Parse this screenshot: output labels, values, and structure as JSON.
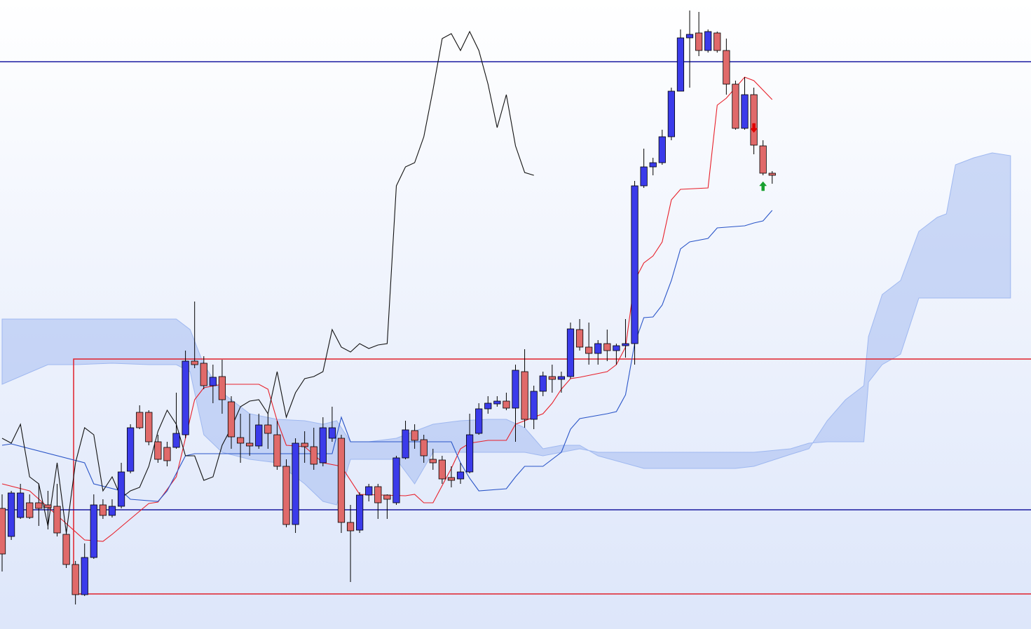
{
  "chart_data": {
    "type": "candlestick",
    "xlim": [
      -0.23,
      112.23
    ],
    "ylim": [
      3,
      900
    ],
    "up_color": "#3b3bea",
    "down_color": "#e06a6a",
    "candles": {
      "open": [
        175,
        135,
        162,
        183,
        183,
        180,
        178,
        138,
        95,
        52,
        105,
        180,
        165,
        178,
        228,
        312,
        312,
        270,
        262,
        262,
        280,
        385,
        382,
        350,
        363,
        327,
        276,
        268,
        264,
        294,
        280,
        235,
        152,
        268,
        263,
        240,
        275,
        275,
        155,
        144,
        194,
        206,
        194,
        183,
        247,
        286,
        273,
        245,
        244,
        219,
        217,
        227,
        282,
        317,
        324,
        328,
        318,
        370,
        302,
        342,
        363,
        359,
        363,
        430,
        405,
        396,
        410,
        400,
        407,
        410,
        635,
        662,
        668,
        705,
        770,
        846,
        853,
        828,
        853,
        828,
        780,
        717,
        765,
        692,
        653
      ],
      "high": [
        195,
        200,
        210,
        195,
        210,
        200,
        210,
        145,
        100,
        125,
        195,
        188,
        188,
        240,
        295,
        322,
        315,
        280,
        270,
        340,
        400,
        470,
        392,
        380,
        387,
        335,
        310,
        310,
        310,
        310,
        300,
        245,
        275,
        285,
        290,
        305,
        320,
        280,
        180,
        198,
        210,
        210,
        195,
        250,
        300,
        295,
        280,
        260,
        250,
        235,
        240,
        310,
        325,
        335,
        335,
        340,
        380,
        402,
        350,
        370,
        380,
        370,
        440,
        445,
        440,
        415,
        430,
        410,
        445,
        642,
        688,
        675,
        715,
        775,
        858,
        885,
        883,
        858,
        855,
        845,
        785,
        790,
        775,
        700,
        656
      ],
      "low": [
        85,
        130,
        160,
        160,
        150,
        145,
        135,
        90,
        38,
        50,
        103,
        160,
        162,
        175,
        225,
        288,
        265,
        240,
        235,
        260,
        275,
        375,
        345,
        325,
        310,
        260,
        240,
        250,
        260,
        260,
        230,
        148,
        140,
        240,
        230,
        235,
        270,
        140,
        70,
        140,
        185,
        160,
        160,
        180,
        245,
        260,
        240,
        230,
        210,
        205,
        210,
        225,
        280,
        310,
        320,
        315,
        270,
        290,
        288,
        335,
        340,
        340,
        360,
        400,
        380,
        380,
        385,
        380,
        390,
        380,
        632,
        650,
        665,
        700,
        770,
        775,
        820,
        825,
        825,
        765,
        715,
        715,
        680,
        650,
        638
      ],
      "close": [
        110,
        197,
        197,
        162,
        175,
        176,
        140,
        95,
        52,
        105,
        180,
        165,
        178,
        227,
        290,
        290,
        270,
        245,
        243,
        282,
        385,
        380,
        350,
        362,
        330,
        277,
        268,
        264,
        294,
        282,
        235,
        152,
        268,
        263,
        238,
        290,
        290,
        155,
        143,
        194,
        206,
        183,
        188,
        247,
        287,
        272,
        250,
        240,
        217,
        215,
        227,
        280,
        317,
        325,
        328,
        318,
        372,
        302,
        342,
        364,
        359,
        363,
        431,
        405,
        396,
        410,
        400,
        407,
        410,
        635,
        662,
        668,
        705,
        770,
        846,
        851,
        828,
        855,
        828,
        780,
        717,
        765,
        693,
        653,
        650
      ]
    },
    "lines": [
      {
        "color": "#e8202a",
        "x": [
          0,
          3,
          6,
          9,
          11,
          12,
          14,
          16,
          17,
          19,
          20,
          21,
          22,
          24,
          28,
          29,
          30,
          31,
          33,
          35,
          37,
          39,
          44,
          45,
          46,
          47,
          49,
          50,
          51,
          53,
          55,
          56,
          57,
          59,
          60,
          61,
          62,
          63,
          66,
          67,
          68,
          69,
          70,
          71,
          72,
          73,
          74,
          77,
          78,
          79,
          81,
          82,
          84
        ],
        "values": [
          210,
          200,
          165,
          130,
          128,
          138,
          160,
          182,
          184,
          220,
          275,
          330,
          347,
          352,
          352,
          345,
          300,
          265,
          263,
          240,
          235,
          195,
          193,
          195,
          183,
          183,
          232,
          260,
          268,
          272,
          272,
          295,
          300,
          310,
          325,
          345,
          360,
          362,
          370,
          380,
          405,
          500,
          525,
          535,
          555,
          615,
          630,
          632,
          750,
          760,
          790,
          785,
          758
        ]
      },
      {
        "color": "#2a55c8",
        "x": [
          0,
          1,
          9,
          10,
          13,
          14,
          17,
          18,
          20,
          21,
          36,
          37,
          38,
          49,
          50,
          51,
          52,
          55,
          56,
          57,
          59,
          61,
          62,
          63,
          66,
          67,
          68,
          69,
          70,
          71,
          72,
          73,
          74,
          75,
          77,
          78,
          81,
          82,
          83,
          84
        ],
        "values": [
          265,
          267,
          240,
          210,
          200,
          188,
          185,
          200,
          250,
          253,
          253,
          305,
          270,
          270,
          240,
          218,
          200,
          203,
          220,
          235,
          235,
          255,
          288,
          303,
          310,
          313,
          337,
          410,
          447,
          448,
          465,
          500,
          545,
          555,
          560,
          575,
          578,
          582,
          585,
          600
        ]
      },
      {
        "color": "#111111",
        "x": [
          0,
          1,
          2,
          3,
          4,
          5,
          6,
          7,
          8,
          9,
          10,
          11,
          12,
          13,
          14,
          15,
          16,
          17,
          18,
          19,
          20,
          21,
          22,
          23,
          24,
          25,
          26,
          27,
          28,
          29,
          30,
          31,
          32,
          33,
          34,
          35,
          36,
          37,
          38,
          39,
          40,
          41,
          42,
          43,
          44,
          45,
          46,
          47,
          48,
          49,
          50,
          51,
          52,
          53,
          54,
          55,
          56,
          57,
          58
        ],
        "values": [
          275,
          268,
          295,
          220,
          210,
          150,
          240,
          140,
          240,
          290,
          280,
          200,
          220,
          190,
          200,
          205,
          235,
          285,
          315,
          295,
          250,
          250,
          215,
          220,
          265,
          290,
          320,
          328,
          330,
          310,
          370,
          305,
          340,
          360,
          363,
          370,
          430,
          405,
          398,
          410,
          403,
          408,
          410,
          635,
          662,
          668,
          705,
          772,
          845,
          852,
          828,
          855,
          828,
          780,
          718,
          765,
          692,
          654,
          650
        ]
      }
    ],
    "cloud": {
      "color": "#9fb8f0",
      "x": [
        0,
        5,
        8,
        12,
        16,
        19,
        20.5,
        22,
        24,
        27,
        30,
        33,
        35,
        36.5,
        38,
        40,
        43,
        45,
        47,
        50,
        53,
        55,
        57,
        59,
        61,
        63,
        65,
        70,
        75,
        80,
        82,
        86,
        88,
        90,
        92,
        94,
        94.5,
        96,
        98,
        100,
        102,
        103,
        104,
        106,
        108,
        110
      ],
      "span_a": [
        445,
        445,
        445,
        445,
        445,
        445,
        430,
        380,
        340,
        310,
        302,
        300,
        295,
        300,
        270,
        270,
        275,
        285,
        295,
        300,
        302,
        302,
        290,
        260,
        265,
        265,
        250,
        232,
        232,
        232,
        235,
        252,
        260,
        300,
        330,
        350,
        420,
        480,
        500,
        570,
        590,
        595,
        665,
        675,
        682,
        678
      ],
      "span_b": [
        352,
        380,
        380,
        382,
        380,
        380,
        370,
        280,
        255,
        245,
        240,
        210,
        185,
        180,
        245,
        245,
        245,
        210,
        255,
        255,
        255,
        255,
        255,
        250,
        255,
        260,
        255,
        255,
        255,
        255,
        255,
        260,
        268,
        270,
        270,
        270,
        355,
        380,
        395,
        475,
        475,
        475,
        475,
        475,
        475,
        475
      ]
    },
    "hlines": {
      "color": "#1a1aa0",
      "values": [
        812,
        173
      ]
    },
    "zone": {
      "color": "#e0202a",
      "x_start": 7.8,
      "top": 388,
      "bottom": 53
    },
    "arrows": [
      {
        "x": 82,
        "y": 717,
        "color": "#e00000",
        "direction": "down"
      },
      {
        "x": 83,
        "y": 635,
        "color": "#18a030",
        "direction": "up"
      }
    ]
  }
}
